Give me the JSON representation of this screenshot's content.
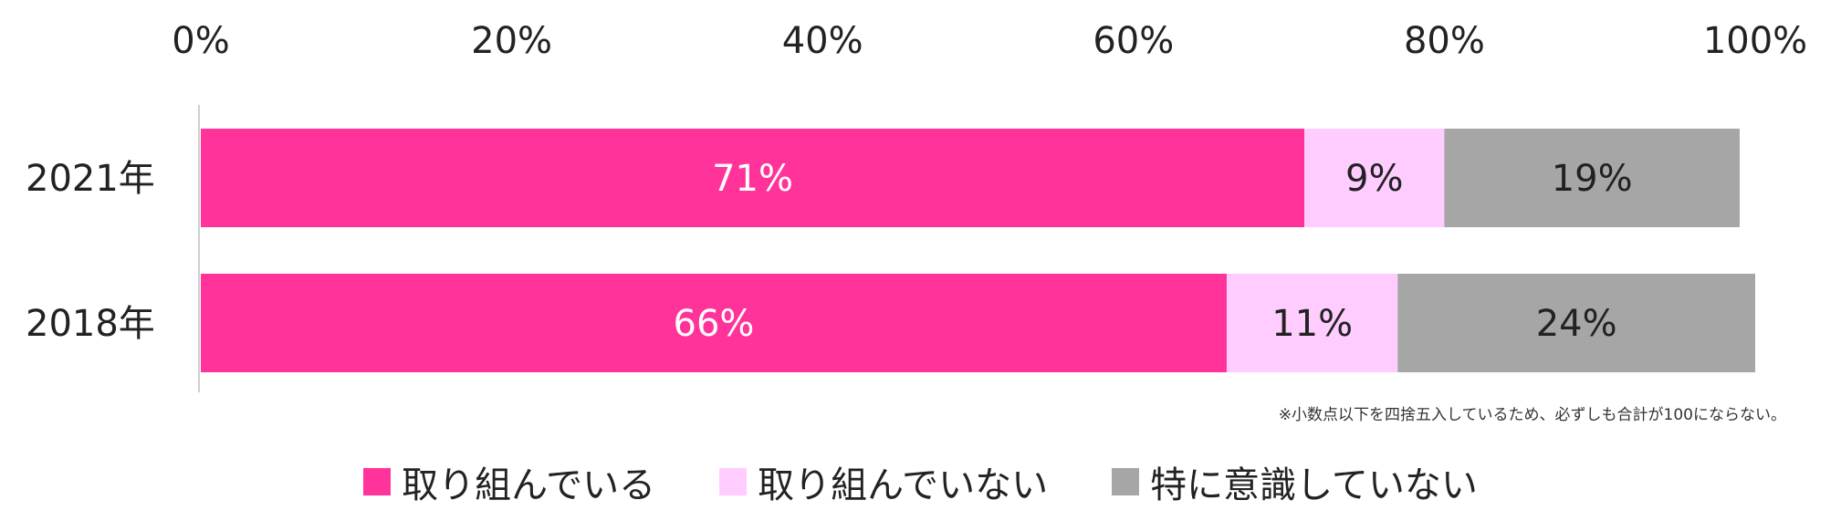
{
  "chart_data": {
    "type": "bar",
    "orientation": "horizontal",
    "stacked": true,
    "categories": [
      "2021年",
      "2018年"
    ],
    "series": [
      {
        "name": "取り組んでいる",
        "values": [
          71,
          66
        ],
        "labels": [
          "71%",
          "66%"
        ],
        "color": "#ff3399",
        "label_color": "#ffffff"
      },
      {
        "name": "取り組んでいない",
        "values": [
          9,
          11
        ],
        "labels": [
          "9%",
          "11%"
        ],
        "color": "#ffccff",
        "label_color": "#222222"
      },
      {
        "name": "特に意識していない",
        "values": [
          19,
          24
        ],
        "labels": [
          "19%",
          "24%"
        ],
        "color": "#a6a6a6",
        "label_color": "#222222"
      }
    ],
    "xlim": [
      0,
      100
    ],
    "xticks": [
      "0%",
      "20%",
      "40%",
      "60%",
      "80%",
      "100%"
    ],
    "xaxis_position": "top",
    "grid": false,
    "legend_position": "bottom"
  },
  "note": "※小数点以下を四捨五入しているため、必ずしも合計が100にならない。"
}
